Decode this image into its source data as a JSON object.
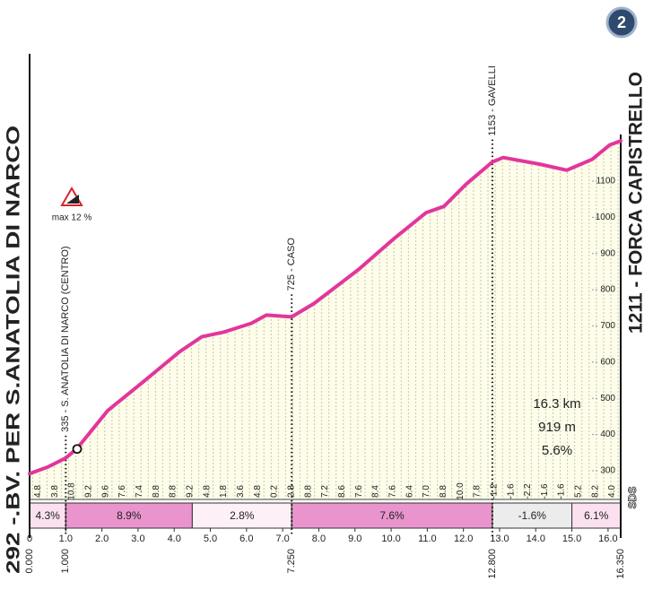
{
  "chart_data": {
    "type": "line",
    "title_left": "292 -.BV. PER S.ANATOLIA DI NARCO",
    "title_right": "1211 - FORCA CAPISTRELLO",
    "badge": "2",
    "brand": "SDS",
    "max_label": "max 12 %",
    "x": [
      0,
      0.5,
      1,
      1.3,
      2.16,
      3.15,
      4.14,
      4.76,
      5.38,
      6.13,
      6.55,
      7.25,
      7.87,
      9.1,
      10.1,
      10.97,
      11.46,
      12.08,
      12.8,
      13.1,
      14.1,
      14.86,
      15.56,
      16.05,
      16.35
    ],
    "values": [
      292,
      310,
      335,
      360,
      466,
      546,
      628,
      670,
      683,
      707,
      730,
      725,
      762,
      856,
      943,
      1013,
      1030,
      1092,
      1153,
      1165,
      1147,
      1130,
      1160,
      1200,
      1211
    ],
    "color": "#e2369c",
    "fill": "#fdfde9",
    "xlim": [
      0,
      16.35
    ],
    "ylim": [
      250,
      1250
    ],
    "xticks": [
      0,
      {
        "value": 1,
        "label": "1.0"
      },
      {
        "value": 2,
        "label": "2.0"
      },
      {
        "value": 3,
        "label": "3.0"
      },
      {
        "value": 4,
        "label": "4.0"
      },
      {
        "value": 5,
        "label": "5.0"
      },
      {
        "value": 6,
        "label": "6.0"
      },
      {
        "value": 7,
        "label": "7.0"
      },
      {
        "value": 8,
        "label": "8.0"
      },
      {
        "value": 9,
        "label": "9.0"
      },
      {
        "value": 10,
        "label": "10.0"
      },
      {
        "value": 11,
        "label": "11.0"
      },
      {
        "value": 12,
        "label": "12.0"
      },
      {
        "value": 13,
        "label": "13.0"
      },
      {
        "value": 14,
        "label": "14.0"
      },
      {
        "value": 15,
        "label": "15.0"
      },
      {
        "value": 16,
        "label": "16.0"
      }
    ],
    "yticks": [
      300,
      400,
      500,
      600,
      700,
      800,
      900,
      1000,
      1100
    ],
    "distance_markers": [
      {
        "value": 0,
        "label": "0.000"
      },
      {
        "value": 1,
        "label": "1.000",
        "waypoint": "335 - S. ANATOLIA DI NARCO (CENTRO)"
      },
      {
        "value": 7.25,
        "label": "7.250",
        "waypoint": "725 - CASO"
      },
      {
        "value": 12.8,
        "label": "12.800",
        "waypoint": "1153 - GAVELLI"
      },
      {
        "value": 16.35,
        "label": "16.350"
      }
    ],
    "gradients": [
      4.8,
      3.8,
      10.8,
      9.2,
      9.6,
      7.6,
      7.4,
      8.8,
      8.8,
      9.2,
      4.8,
      1.8,
      3.6,
      4.8,
      0.2,
      2.8,
      8.8,
      7.2,
      8.6,
      7.6,
      8.4,
      7.6,
      6.4,
      {
        "value": 7,
        "label": "7.0"
      },
      8.8,
      {
        "value": 10,
        "label": "10.0"
      },
      7.8,
      -1.2,
      -1.6,
      -2.2,
      -1.6,
      -1.6,
      5.2,
      8.2,
      {
        "value": 4,
        "label": "4.0"
      }
    ],
    "segments": [
      {
        "start": 0,
        "end": 1,
        "value": 4.3,
        "label": "4.3%",
        "color": "#fbe1f0"
      },
      {
        "start": 1,
        "end": 4.5,
        "value": 8.9,
        "label": "8.9%",
        "color": "#e994cc"
      },
      {
        "start": 4.5,
        "end": 7.25,
        "value": 2.8,
        "label": "2.8%",
        "color": "#fdf0f7"
      },
      {
        "start": 7.25,
        "end": 12.8,
        "value": 7.6,
        "label": "7.6%",
        "color": "#e994cc"
      },
      {
        "start": 12.8,
        "end": 15,
        "value": -1.6,
        "label": "-1.6%",
        "color": "#ececec"
      },
      {
        "start": 15,
        "end": 16.35,
        "value": 6.1,
        "label": "6.1%",
        "color": "#fbe1f0"
      }
    ],
    "summary": [
      "16.3 km",
      "919 m",
      "5.6%"
    ]
  }
}
